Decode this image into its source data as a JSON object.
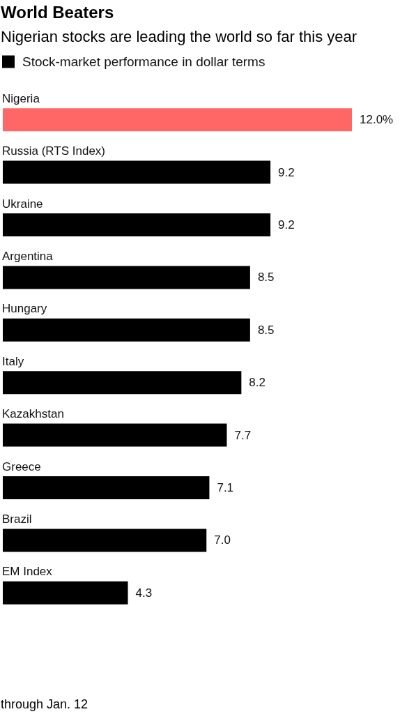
{
  "chart_data": {
    "type": "bar",
    "orientation": "horizontal",
    "title": "World Beaters",
    "subtitle": "Nigerian stocks are leading the world so far this year",
    "categories": [
      "Nigeria",
      "Russia (RTS Index)",
      "Ukraine",
      "Argentina",
      "Hungary",
      "Italy",
      "Kazakhstan",
      "Greece",
      "Brazil",
      "EM Index"
    ],
    "series": [
      {
        "name": "Stock-market performance in dollar terms",
        "color": "#000000",
        "colors": [
          "#ff6666",
          "#000000",
          "#000000",
          "#000000",
          "#000000",
          "#000000",
          "#000000",
          "#000000",
          "#000000",
          "#000000"
        ],
        "values": [
          12.0,
          9.2,
          9.2,
          8.5,
          8.5,
          8.2,
          7.7,
          7.1,
          7.0,
          4.3
        ],
        "value_labels": [
          "12.0%",
          "9.2",
          "9.2",
          "8.5",
          "8.5",
          "8.2",
          "7.7",
          "7.1",
          "7.0",
          "4.3"
        ]
      }
    ],
    "legend": "top left",
    "tick_labels": "y",
    "annotations": [
      "through Jan. 12"
    ]
  }
}
